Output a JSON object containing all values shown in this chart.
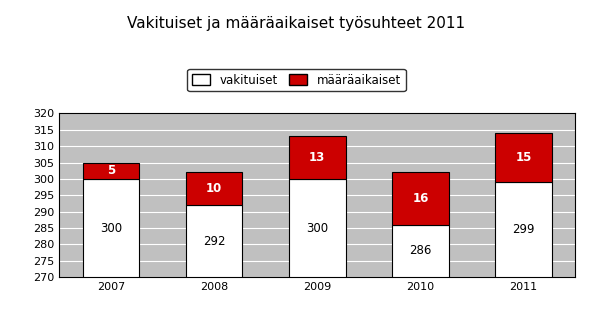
{
  "title": "Vakituiset ja määräaikaiset työsuhteet 2011",
  "categories": [
    "2007",
    "2008",
    "2009",
    "2010",
    "2011"
  ],
  "vakituiset": [
    300,
    292,
    300,
    286,
    299
  ],
  "maaraaikaiset": [
    5,
    10,
    13,
    16,
    15
  ],
  "bar_color_vakituiset": "#ffffff",
  "bar_color_maaraaiset": "#cc0000",
  "bar_edgecolor": "#000000",
  "ylim": [
    270,
    320
  ],
  "ymin": 270,
  "yticks": [
    270,
    275,
    280,
    285,
    290,
    295,
    300,
    305,
    310,
    315,
    320
  ],
  "background_color": "#c0c0c0",
  "figure_background": "#ffffff",
  "legend_vakituiset": "vakituiset",
  "bar_width": 0.55,
  "title_fontsize": 11,
  "label_fontsize": 8.5,
  "tick_fontsize": 8,
  "legend_fontsize": 8.5
}
